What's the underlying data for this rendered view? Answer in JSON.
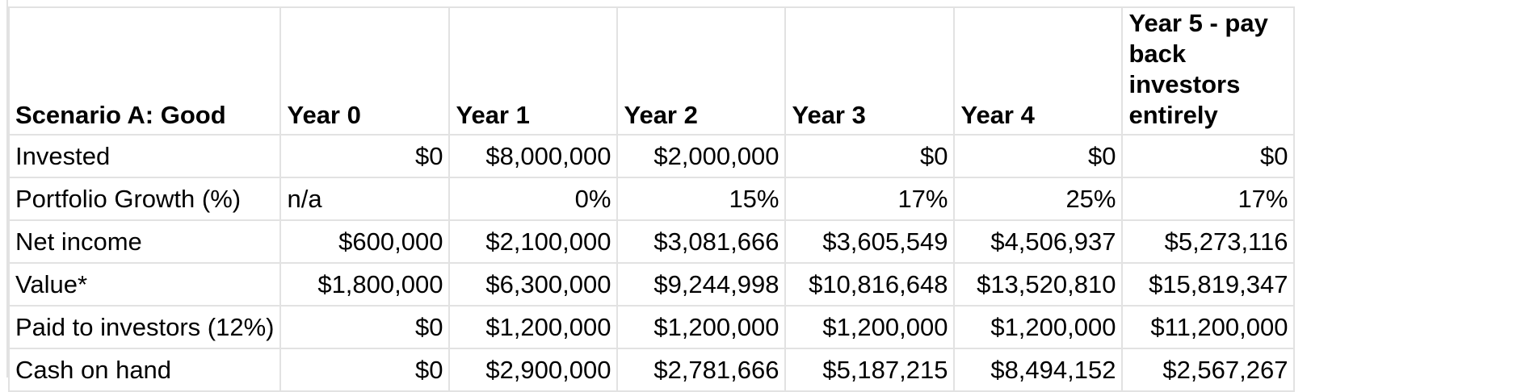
{
  "sheet": {
    "headers": [
      "Scenario A: Good",
      "Year 0",
      "Year 1",
      "Year 2",
      "Year 3",
      "Year 4",
      "Year 5 - pay back investors entirely"
    ],
    "rows": [
      {
        "label": "Invested",
        "cells": [
          "$0",
          "$8,000,000",
          "$2,000,000",
          "$0",
          "$0",
          "$0"
        ]
      },
      {
        "label": "Portfolio Growth (%)",
        "cells": [
          "n/a",
          "0%",
          "15%",
          "17%",
          "25%",
          "17%"
        ]
      },
      {
        "label": "Net income",
        "cells": [
          "$600,000",
          "$2,100,000",
          "$3,081,666",
          "$3,605,549",
          "$4,506,937",
          "$5,273,116"
        ]
      },
      {
        "label": "Value*",
        "cells": [
          "$1,800,000",
          "$6,300,000",
          "$9,244,998",
          "$10,816,648",
          "$13,520,810",
          "$15,819,347"
        ]
      },
      {
        "label": "Paid to investors (12%)",
        "cells": [
          "$0",
          "$1,200,000",
          "$1,200,000",
          "$1,200,000",
          "$1,200,000",
          "$11,200,000"
        ]
      },
      {
        "label": "Cash on hand",
        "cells": [
          "$0",
          "$2,900,000",
          "$2,781,666",
          "$5,187,215",
          "$8,494,152",
          "$2,567,267"
        ]
      }
    ]
  },
  "colors": {
    "gridline": "#e2e2e2",
    "text": "#000000",
    "background": "#ffffff"
  }
}
